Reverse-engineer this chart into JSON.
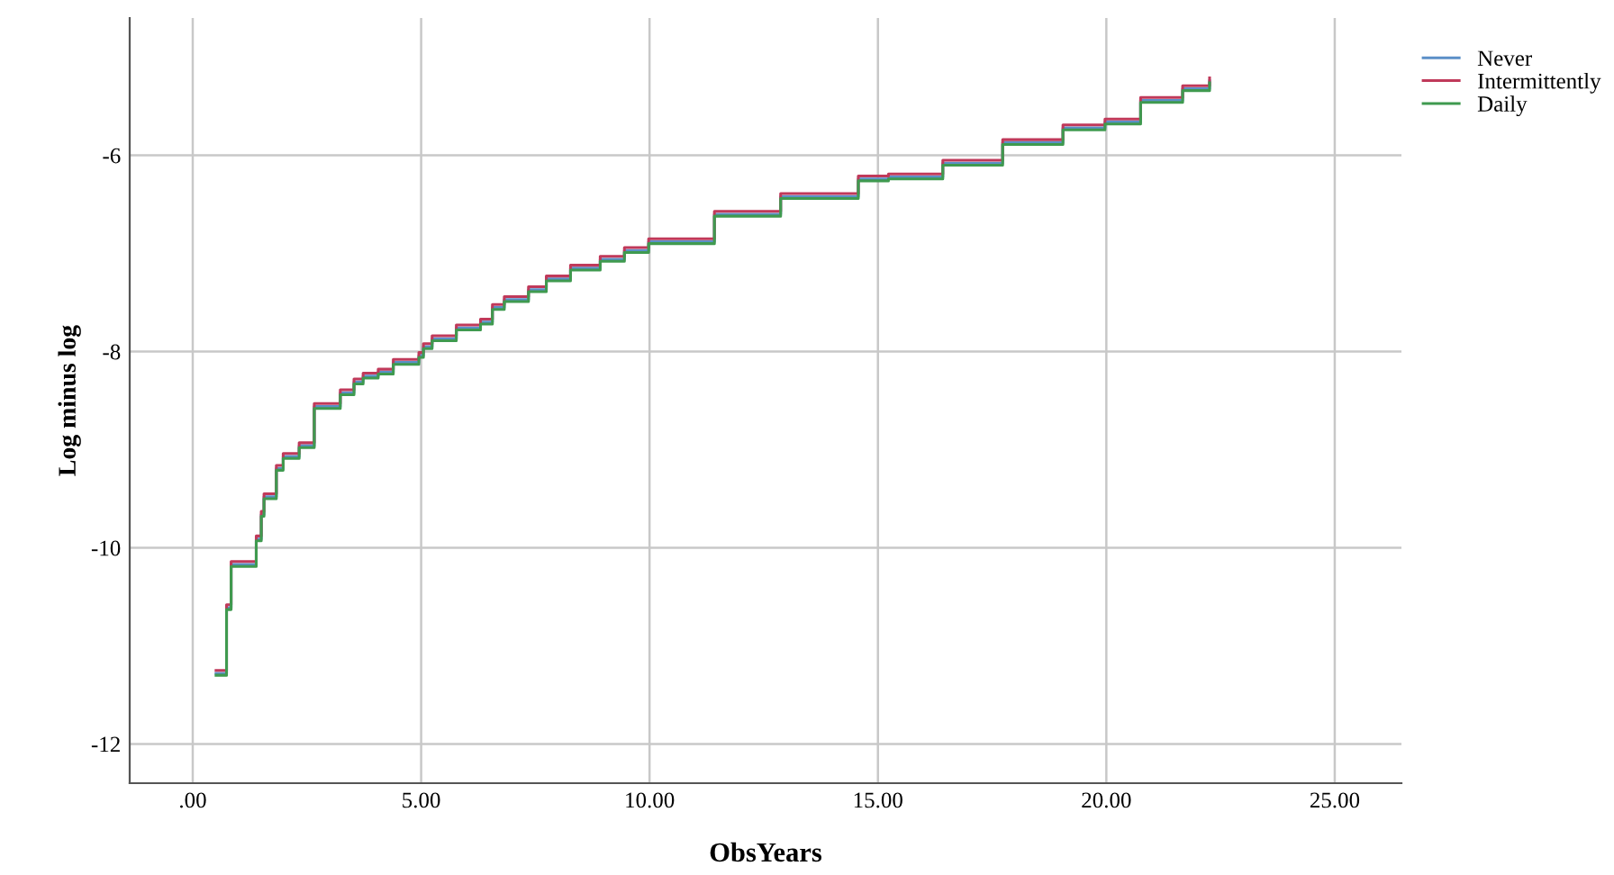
{
  "chart_data": {
    "type": "step",
    "xlabel": "ObsYears",
    "ylabel": "Log minus log",
    "x": [
      0.51,
      0.74,
      0.84,
      1.39,
      1.5,
      1.56,
      1.83,
      1.98,
      2.33,
      2.66,
      3.23,
      3.53,
      3.73,
      4.06,
      4.39,
      4.95,
      5.05,
      5.24,
      5.77,
      6.3,
      6.56,
      6.82,
      7.35,
      7.74,
      8.27,
      8.92,
      9.45,
      9.98,
      11.42,
      12.87,
      14.57,
      15.23,
      16.42,
      17.73,
      19.05,
      19.97,
      20.75,
      21.67,
      22.26
    ],
    "series": [
      {
        "name": "Never",
        "color": "#5b8fc7",
        "values": [
          -11.28,
          -10.61,
          -10.17,
          -9.91,
          -9.66,
          -9.48,
          -9.19,
          -9.07,
          -8.96,
          -8.56,
          -8.42,
          -8.31,
          -8.25,
          -8.21,
          -8.11,
          -8.04,
          -7.95,
          -7.87,
          -7.76,
          -7.7,
          -7.55,
          -7.47,
          -7.37,
          -7.26,
          -7.15,
          -7.06,
          -6.97,
          -6.88,
          -6.6,
          -6.42,
          -6.24,
          -6.22,
          -6.08,
          -5.87,
          -5.72,
          -5.66,
          -5.44,
          -5.32,
          -5.24
        ]
      },
      {
        "name": "Intermittently",
        "color": "#c0395a",
        "values": [
          -11.25,
          -10.58,
          -10.14,
          -9.88,
          -9.63,
          -9.45,
          -9.16,
          -9.04,
          -8.93,
          -8.53,
          -8.39,
          -8.28,
          -8.22,
          -8.18,
          -8.08,
          -8.01,
          -7.92,
          -7.84,
          -7.73,
          -7.67,
          -7.52,
          -7.44,
          -7.34,
          -7.23,
          -7.12,
          -7.03,
          -6.94,
          -6.85,
          -6.57,
          -6.39,
          -6.21,
          -6.19,
          -6.05,
          -5.84,
          -5.69,
          -5.63,
          -5.41,
          -5.29,
          -5.21
        ]
      },
      {
        "name": "Daily",
        "color": "#3f9a4f",
        "values": [
          -11.3,
          -10.63,
          -10.19,
          -9.93,
          -9.68,
          -9.5,
          -9.21,
          -9.09,
          -8.98,
          -8.58,
          -8.44,
          -8.33,
          -8.27,
          -8.23,
          -8.13,
          -8.06,
          -7.97,
          -7.89,
          -7.78,
          -7.72,
          -7.57,
          -7.49,
          -7.39,
          -7.28,
          -7.17,
          -7.08,
          -6.99,
          -6.9,
          -6.62,
          -6.44,
          -6.26,
          -6.24,
          -6.1,
          -5.89,
          -5.74,
          -5.68,
          -5.46,
          -5.34,
          -5.26
        ]
      }
    ],
    "xlim": [
      -1.38,
      26.46
    ],
    "ylim": [
      -12.4,
      -4.6
    ],
    "xticks": [
      {
        "value": 0,
        "label": ".00"
      },
      {
        "value": 5,
        "label": "5.00"
      },
      {
        "value": 10,
        "label": "10.00"
      },
      {
        "value": 15,
        "label": "15.00"
      },
      {
        "value": 20,
        "label": "20.00"
      },
      {
        "value": 25,
        "label": "25.00"
      }
    ],
    "yticks": [
      {
        "value": -12,
        "label": "-12"
      },
      {
        "value": -10,
        "label": "-10"
      },
      {
        "value": -8,
        "label": "-8"
      },
      {
        "value": -6,
        "label": "-6"
      }
    ],
    "grid": true,
    "legend": "top right",
    "line_style": "solid",
    "marker": "none"
  }
}
